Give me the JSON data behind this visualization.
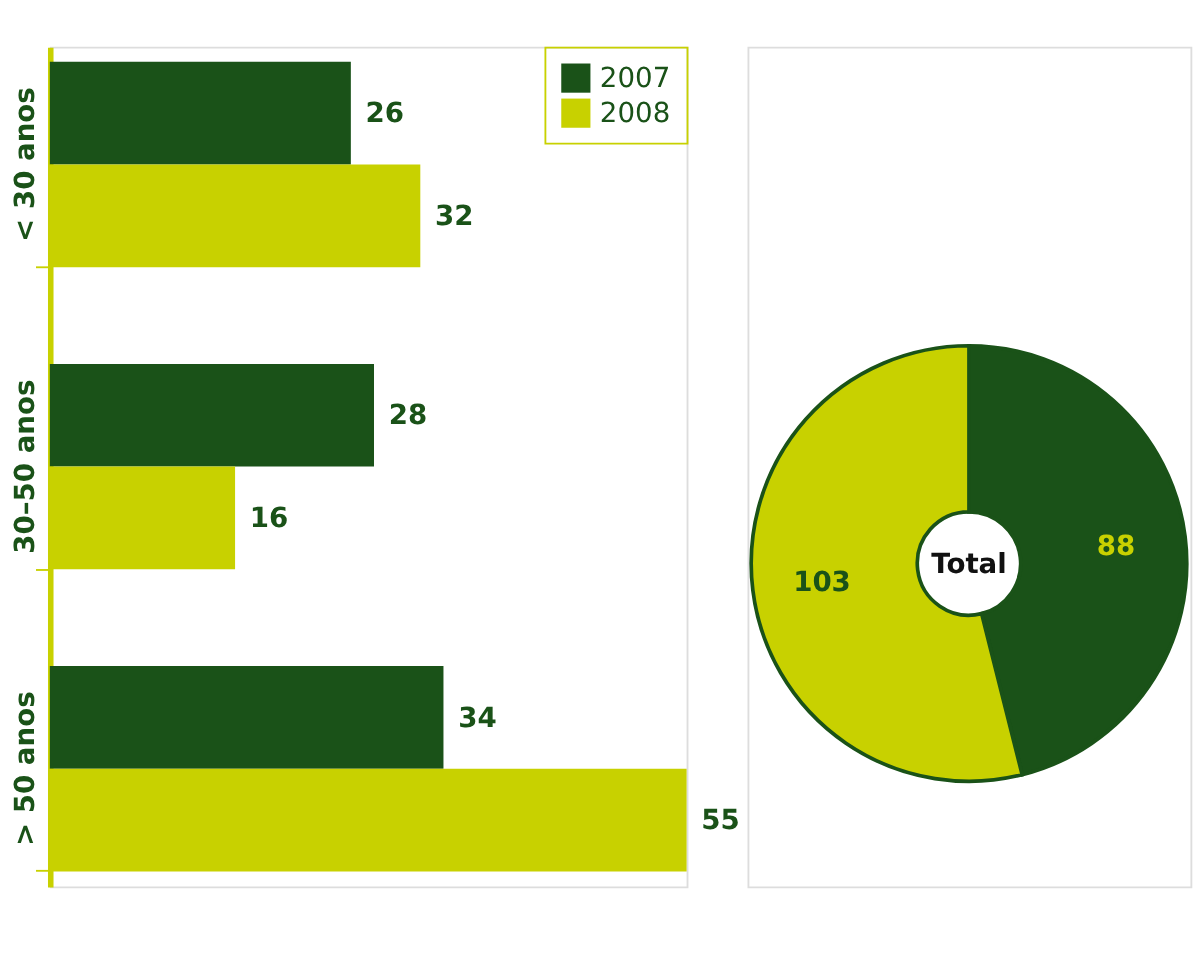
{
  "chart_data": [
    {
      "type": "bar",
      "orientation": "horizontal",
      "categories": [
        "< 30 anos",
        "30–50 anos",
        "> 50 anos"
      ],
      "series": [
        {
          "name": "2007",
          "color": "#1a5218",
          "values": [
            26,
            28,
            34
          ]
        },
        {
          "name": "2008",
          "color": "#c8d100",
          "values": [
            32,
            16,
            55
          ]
        }
      ],
      "data_labels": true,
      "legend": "top right",
      "tick_labels": "y",
      "grid": false
    },
    {
      "type": "donut",
      "categories": [
        null,
        null
      ],
      "values": [
        88,
        103
      ],
      "colors": [
        "#1a5218",
        "#c8d100"
      ],
      "data_labels": true,
      "annotations": [
        "Total"
      ]
    }
  ]
}
